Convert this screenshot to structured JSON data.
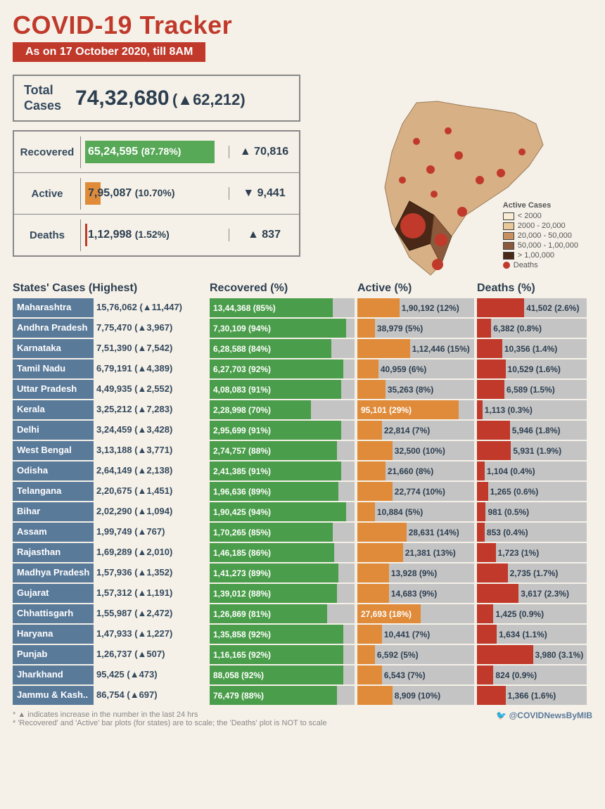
{
  "title": "COVID-19 Tracker",
  "date_badge": "As on 17 October 2020, till 8AM",
  "colors": {
    "accent_red": "#c0392b",
    "recovered": "#4a9d4a",
    "active": "#e08b3a",
    "deaths": "#c0392b",
    "state_bg": "#5a7a9a",
    "bar_bg": "#c4c4c4",
    "text_dark": "#2c3e50"
  },
  "totals": {
    "label": "Total\nCases",
    "value": "74,32,680",
    "delta": "(▲62,212)"
  },
  "summary": [
    {
      "label": "Recovered",
      "value": "65,24,595",
      "pct": "(87.78%)",
      "bar_pct": 87.78,
      "color": "#57a857",
      "delta": "▲ 70,816",
      "text_inside": true
    },
    {
      "label": "Active",
      "value": "7,95,087",
      "pct": "(10.70%)",
      "bar_pct": 10.7,
      "color": "#e08b3a",
      "delta": "▼ 9,441",
      "text_inside": false
    },
    {
      "label": "Deaths",
      "value": "1,12,998",
      "pct": "(1.52%)",
      "bar_pct": 1.52,
      "color": "#c0392b",
      "delta": "▲ 837",
      "text_inside": false
    }
  ],
  "legend": {
    "title": "Active Cases",
    "items": [
      {
        "color": "#f8ecd4",
        "label": "< 2000"
      },
      {
        "color": "#e8c898",
        "label": "2000 - 20,000"
      },
      {
        "color": "#c89060",
        "label": "20,000 - 50,000"
      },
      {
        "color": "#8b5a3c",
        "label": "50,000 - 1,00,000"
      },
      {
        "color": "#4a2818",
        "label": "> 1,00,000"
      }
    ],
    "deaths_label": "Deaths"
  },
  "table_headers": {
    "state": "States' Cases (Highest)",
    "recovered": "Recovered (%)",
    "active": "Active (%)",
    "deaths": "Deaths (%)"
  },
  "states": [
    {
      "name": "Maharashtra",
      "cases": "15,76,062",
      "delta": "11,447",
      "rec_v": "13,44,368",
      "rec_p": 85,
      "act_v": "1,90,192",
      "act_p": 12,
      "d_v": "41,502",
      "d_p": 2.6,
      "d_bar": 43
    },
    {
      "name": "Andhra Pradesh",
      "cases": "7,75,470",
      "delta": "3,967",
      "rec_v": "7,30,109",
      "rec_p": 94,
      "act_v": "38,979",
      "act_p": 5,
      "d_v": "6,382",
      "d_p": 0.8,
      "d_bar": 13
    },
    {
      "name": "Karnataka",
      "cases": "7,51,390",
      "delta": "7,542",
      "rec_v": "6,28,588",
      "rec_p": 84,
      "act_v": "1,12,446",
      "act_p": 15,
      "d_v": "10,356",
      "d_p": 1.4,
      "d_bar": 23
    },
    {
      "name": "Tamil Nadu",
      "cases": "6,79,191",
      "delta": "4,389",
      "rec_v": "6,27,703",
      "rec_p": 92,
      "act_v": "40,959",
      "act_p": 6,
      "d_v": "10,529",
      "d_p": 1.6,
      "d_bar": 26
    },
    {
      "name": "Uttar Pradesh",
      "cases": "4,49,935",
      "delta": "2,552",
      "rec_v": "4,08,083",
      "rec_p": 91,
      "act_v": "35,263",
      "act_p": 8,
      "d_v": "6,589",
      "d_p": 1.5,
      "d_bar": 25
    },
    {
      "name": "Kerala",
      "cases": "3,25,212",
      "delta": "7,283",
      "rec_v": "2,28,998",
      "rec_p": 70,
      "act_v": "95,101",
      "act_p": 29,
      "d_v": "1,113",
      "d_p": 0.3,
      "d_bar": 5
    },
    {
      "name": "Delhi",
      "cases": "3,24,459",
      "delta": "3,428",
      "rec_v": "2,95,699",
      "rec_p": 91,
      "act_v": "22,814",
      "act_p": 7,
      "d_v": "5,946",
      "d_p": 1.8,
      "d_bar": 30
    },
    {
      "name": "West Bengal",
      "cases": "3,13,188",
      "delta": "3,771",
      "rec_v": "2,74,757",
      "rec_p": 88,
      "act_v": "32,500",
      "act_p": 10,
      "d_v": "5,931",
      "d_p": 1.9,
      "d_bar": 31
    },
    {
      "name": "Odisha",
      "cases": "2,64,149",
      "delta": "2,138",
      "rec_v": "2,41,385",
      "rec_p": 91,
      "act_v": "21,660",
      "act_p": 8,
      "d_v": "1,104",
      "d_p": 0.4,
      "d_bar": 7
    },
    {
      "name": "Telangana",
      "cases": "2,20,675",
      "delta": "1,451",
      "rec_v": "1,96,636",
      "rec_p": 89,
      "act_v": "22,774",
      "act_p": 10,
      "d_v": "1,265",
      "d_p": 0.6,
      "d_bar": 10
    },
    {
      "name": "Bihar",
      "cases": "2,02,290",
      "delta": "1,094",
      "rec_v": "1,90,425",
      "rec_p": 94,
      "act_v": "10,884",
      "act_p": 5,
      "d_v": "981",
      "d_p": 0.5,
      "d_bar": 8
    },
    {
      "name": "Assam",
      "cases": "1,99,749",
      "delta": "767",
      "rec_v": "1,70,265",
      "rec_p": 85,
      "act_v": "28,631",
      "act_p": 14,
      "d_v": "853",
      "d_p": 0.4,
      "d_bar": 7
    },
    {
      "name": "Rajasthan",
      "cases": "1,69,289",
      "delta": "2,010",
      "rec_v": "1,46,185",
      "rec_p": 86,
      "act_v": "21,381",
      "act_p": 13,
      "d_v": "1,723",
      "d_p": 1.0,
      "d_bar": 17
    },
    {
      "name": "Madhya Pradesh",
      "cases": "1,57,936",
      "delta": "1,352",
      "rec_v": "1,41,273",
      "rec_p": 89,
      "act_v": "13,928",
      "act_p": 9,
      "d_v": "2,735",
      "d_p": 1.7,
      "d_bar": 28
    },
    {
      "name": "Gujarat",
      "cases": "1,57,312",
      "delta": "1,191",
      "rec_v": "1,39,012",
      "rec_p": 88,
      "act_v": "14,683",
      "act_p": 9,
      "d_v": "3,617",
      "d_p": 2.3,
      "d_bar": 38
    },
    {
      "name": "Chhattisgarh",
      "cases": "1,55,987",
      "delta": "2,472",
      "rec_v": "1,26,869",
      "rec_p": 81,
      "act_v": "27,693",
      "act_p": 18,
      "d_v": "1,425",
      "d_p": 0.9,
      "d_bar": 15
    },
    {
      "name": "Haryana",
      "cases": "1,47,933",
      "delta": "1,227",
      "rec_v": "1,35,858",
      "rec_p": 92,
      "act_v": "10,441",
      "act_p": 7,
      "d_v": "1,634",
      "d_p": 1.1,
      "d_bar": 18
    },
    {
      "name": "Punjab",
      "cases": "1,26,737",
      "delta": "507",
      "rec_v": "1,16,165",
      "rec_p": 92,
      "act_v": "6,592",
      "act_p": 5,
      "d_v": "3,980",
      "d_p": 3.1,
      "d_bar": 51
    },
    {
      "name": "Jharkhand",
      "cases": "95,425",
      "delta": "473",
      "rec_v": "88,058",
      "rec_p": 92,
      "act_v": "6,543",
      "act_p": 7,
      "d_v": "824",
      "d_p": 0.9,
      "d_bar": 15
    },
    {
      "name": "Jammu & Kash..",
      "cases": "86,754",
      "delta": "697",
      "rec_v": "76,479",
      "rec_p": 88,
      "act_v": "8,909",
      "act_p": 10,
      "d_v": "1,366",
      "d_p": 1.6,
      "d_bar": 26
    }
  ],
  "footnotes": [
    "* ▲ indicates increase in the number in the last 24 hrs",
    "* 'Recovered' and 'Active' bar plots (for states) are to scale; the 'Deaths' plot is NOT to scale"
  ],
  "twitter": "@COVIDNewsByMIB"
}
